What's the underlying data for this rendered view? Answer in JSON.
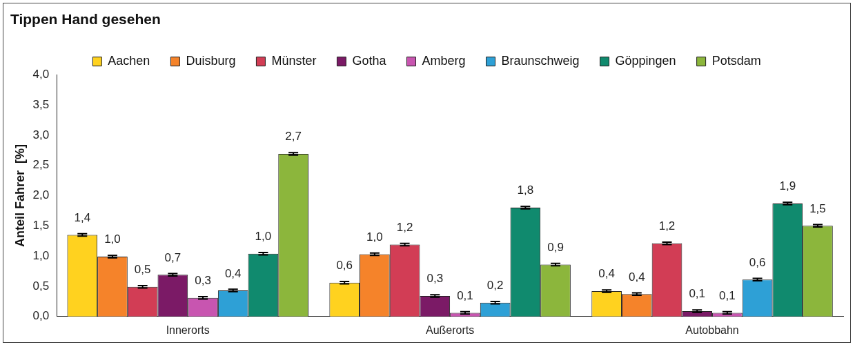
{
  "chart_data": {
    "type": "bar",
    "title": "Tippen Hand gesehen",
    "ylabel": "Anteil Fahrer  [%]",
    "categories": [
      "Innerorts",
      "Außerorts",
      "Autobbahn"
    ],
    "series": [
      {
        "name": "Aachen",
        "color": "#ffd21f",
        "values": [
          1.35,
          0.56,
          0.42
        ],
        "errors": [
          0.02,
          0.02,
          0.02
        ],
        "value_labels": [
          "1,4",
          "0,6",
          "0,4"
        ]
      },
      {
        "name": "Duisburg",
        "color": "#f5832a",
        "values": [
          0.99,
          1.03,
          0.37
        ],
        "errors": [
          0.02,
          0.02,
          0.02
        ],
        "value_labels": [
          "1,0",
          "1,0",
          "0,4"
        ]
      },
      {
        "name": "Münster",
        "color": "#d23d55",
        "values": [
          0.49,
          1.19,
          1.21
        ],
        "errors": [
          0.02,
          0.02,
          0.02
        ],
        "value_labels": [
          "0,5",
          "1,2",
          "1,2"
        ]
      },
      {
        "name": "Gotha",
        "color": "#7b1a66",
        "values": [
          0.69,
          0.34,
          0.09
        ],
        "errors": [
          0.02,
          0.02,
          0.02
        ],
        "value_labels": [
          "0,7",
          "0,3",
          "0,1"
        ]
      },
      {
        "name": "Amberg",
        "color": "#c855b0",
        "values": [
          0.31,
          0.06,
          0.06
        ],
        "errors": [
          0.02,
          0.02,
          0.02
        ],
        "value_labels": [
          "0,3",
          "0,1",
          "0,1"
        ]
      },
      {
        "name": "Braunschweig",
        "color": "#2ea0d6",
        "values": [
          0.43,
          0.23,
          0.61
        ],
        "errors": [
          0.02,
          0.02,
          0.02
        ],
        "value_labels": [
          "0,4",
          "0,2",
          "0,6"
        ]
      },
      {
        "name": "Göppingen",
        "color": "#108a6e",
        "values": [
          1.04,
          1.8,
          1.87
        ],
        "errors": [
          0.02,
          0.02,
          0.02
        ],
        "value_labels": [
          "1,0",
          "1,8",
          "1,9"
        ]
      },
      {
        "name": "Potsdam",
        "color": "#8cb63c",
        "values": [
          2.69,
          0.86,
          1.5
        ],
        "errors": [
          0.02,
          0.02,
          0.02
        ],
        "value_labels": [
          "2,7",
          "0,9",
          "1,5"
        ]
      }
    ],
    "ylim": [
      0,
      4
    ],
    "yticks": [
      {
        "value": 0,
        "label": "0,0"
      },
      {
        "value": 0.5,
        "label": "0,5"
      },
      {
        "value": 1,
        "label": "1,0"
      },
      {
        "value": 1.5,
        "label": "1,5"
      },
      {
        "value": 2,
        "label": "2,0"
      },
      {
        "value": 2.5,
        "label": "2,5"
      },
      {
        "value": 3,
        "label": "3,0"
      },
      {
        "value": 3.5,
        "label": "3,5"
      },
      {
        "value": 4,
        "label": "4,0"
      }
    ],
    "grid": false,
    "legend": "top"
  }
}
